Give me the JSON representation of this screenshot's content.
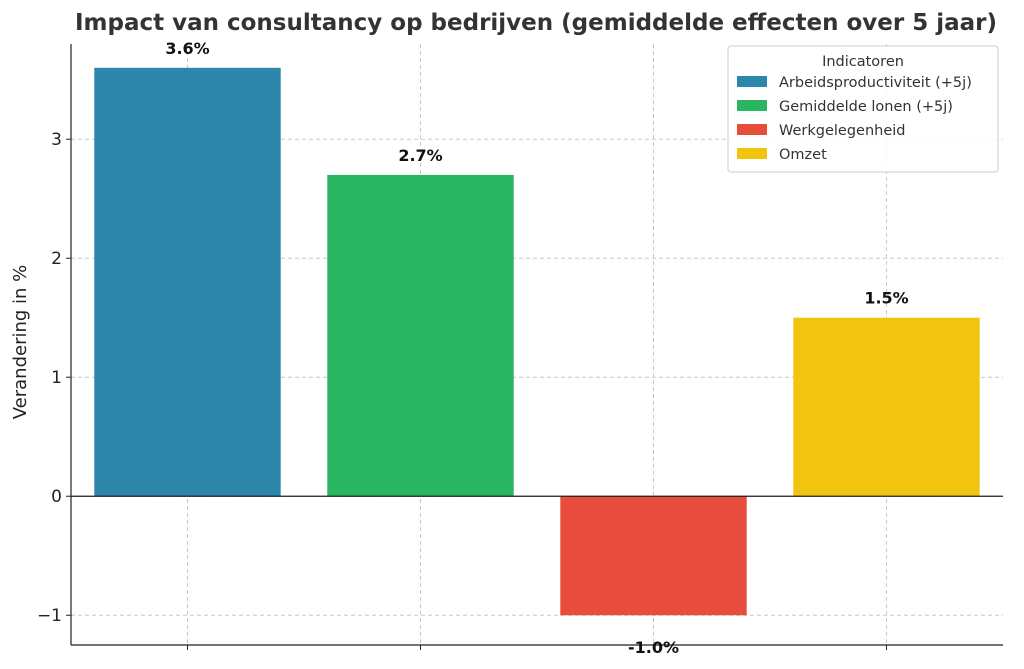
{
  "chart_data": {
    "type": "bar",
    "title": "Impact van consultancy op bedrijven (gemiddelde effecten over 5 jaar)",
    "xlabel": "",
    "ylabel": "Verandering in %",
    "categories": [
      "Arbeidsproductiviteit (+5j)",
      "Gemiddelde lonen (+5j)",
      "Werkgelegenheid",
      "Omzet"
    ],
    "values": [
      3.6,
      2.7,
      -1.0,
      1.5
    ],
    "data_labels": [
      "3.6%",
      "2.7%",
      "-1.0%",
      "1.5%"
    ],
    "colors": [
      "#2e86ab",
      "#2ab562",
      "#e74c3c",
      "#f1c40f"
    ],
    "ylim": [
      -1.25,
      3.8
    ],
    "yticks": [
      -1,
      0,
      1,
      2,
      3
    ],
    "ytick_labels": [
      "−1",
      "0",
      "1",
      "2",
      "3"
    ],
    "grid": true,
    "legend": {
      "title": "Indicatoren",
      "position": "top-right",
      "entries": [
        "Arbeidsproductiviteit (+5j)",
        "Gemiddelde lonen (+5j)",
        "Werkgelegenheid",
        "Omzet"
      ]
    }
  }
}
